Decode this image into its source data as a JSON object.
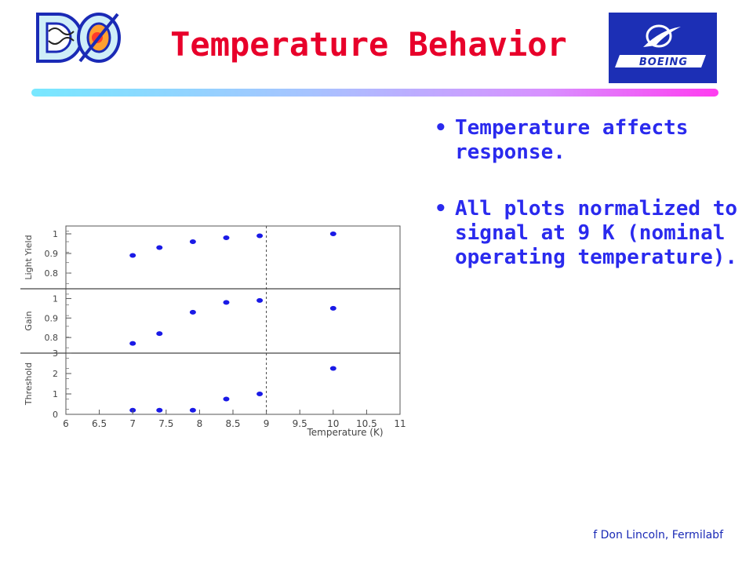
{
  "slide": {
    "title": "Temperature Behavior",
    "bullets": [
      "Temperature affects response.",
      "All plots normalized to signal at 9 K (nominal operating temperature)."
    ],
    "credit": "f Don Lincoln, Fermilabf",
    "logos": {
      "left": "DØ experiment logo",
      "right": "Boeing logo"
    }
  },
  "colors": {
    "title": "#e8002a",
    "bullet_text": "#2a2aee",
    "markers": "#1a1ae6",
    "boeing_bg": "#1c2fb5"
  },
  "chart_data": {
    "type": "scatter",
    "title": "",
    "xlabel": "Temperature (K)",
    "xlim": [
      6,
      11
    ],
    "x_ticks": [
      "6",
      "6.5",
      "7",
      "7.5",
      "8",
      "8.5",
      "9",
      "9.5",
      "10",
      "10.5",
      "11"
    ],
    "reference_line_x": 9,
    "panels": [
      {
        "ylabel": "Light Yield",
        "ylim": [
          0.72,
          1.04
        ],
        "y_ticks": [
          "0.8",
          "0.9",
          "1"
        ],
        "points": [
          [
            7,
            0.89
          ],
          [
            7.4,
            0.93
          ],
          [
            7.9,
            0.96
          ],
          [
            8.4,
            0.98
          ],
          [
            8.9,
            0.99
          ],
          [
            10,
            1.0
          ]
        ]
      },
      {
        "ylabel": "Gain",
        "ylim": [
          0.72,
          1.05
        ],
        "y_ticks": [
          "0.8",
          "0.9",
          "1"
        ],
        "points": [
          [
            7,
            0.77
          ],
          [
            7.4,
            0.82
          ],
          [
            7.9,
            0.93
          ],
          [
            8.4,
            0.98
          ],
          [
            8.9,
            0.99
          ],
          [
            10,
            0.95
          ]
        ]
      },
      {
        "ylabel": "Threshold",
        "ylim": [
          0,
          3
        ],
        "y_ticks": [
          "0",
          "1",
          "2",
          "3"
        ],
        "points": [
          [
            7,
            0.2
          ],
          [
            7.4,
            0.2
          ],
          [
            7.9,
            0.2
          ],
          [
            8.4,
            0.75
          ],
          [
            8.9,
            1.0
          ],
          [
            10,
            2.25
          ]
        ]
      }
    ]
  }
}
